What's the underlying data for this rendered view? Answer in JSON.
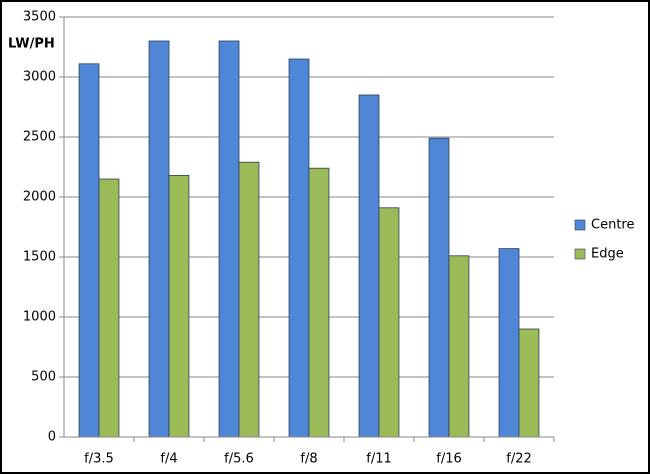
{
  "chart_data": {
    "type": "bar",
    "y_label": "LW/PH",
    "categories": [
      "f/3.5",
      "f/4",
      "f/5.6",
      "f/8",
      "f/11",
      "f/16",
      "f/22"
    ],
    "series": [
      {
        "name": "Centre",
        "color": "#4f86d6",
        "values": [
          3110,
          3300,
          3300,
          3150,
          2850,
          2490,
          1570
        ]
      },
      {
        "name": "Edge",
        "color": "#9bbb59",
        "values": [
          2150,
          2180,
          2290,
          2240,
          1910,
          1510,
          900
        ]
      }
    ],
    "ylim": [
      0,
      3500
    ],
    "yticks": [
      0,
      500,
      1000,
      1500,
      2000,
      2500,
      3000,
      3500
    ],
    "grid": true,
    "legend": "right"
  }
}
